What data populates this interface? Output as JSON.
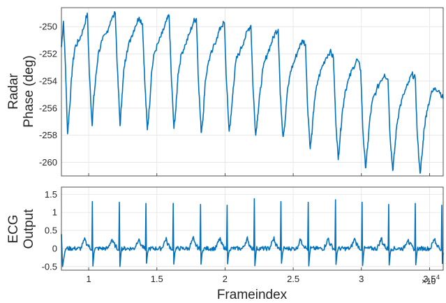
{
  "chart_data": [
    {
      "type": "line",
      "panel": "top",
      "ylabel_line1": "Radar",
      "ylabel_line2": "Phase (deg)",
      "xlabel": "",
      "xlim": [
        8000,
        36000
      ],
      "ylim": [
        -261,
        -248.6
      ],
      "yticks": [
        -250,
        -252,
        -254,
        -256,
        -258,
        -260
      ],
      "grid": true,
      "color": "#0072BD",
      "series": [
        {
          "x": [
            8000,
            8150,
            8300,
            8450,
            8600,
            8800,
            9000,
            9300,
            9600,
            9900,
            10050,
            10250,
            10350,
            10500,
            10700,
            11000,
            11300,
            11600,
            11950,
            12100,
            12300,
            12450,
            12600,
            12800,
            13100,
            13400,
            13700,
            13950,
            14100,
            14300,
            14450,
            14600,
            14800,
            15100,
            15400,
            15700,
            15900,
            16050,
            16250,
            16400,
            16550,
            16800,
            17100,
            17400,
            17700,
            17900,
            18050,
            18250,
            18400,
            18550,
            18800,
            19100,
            19400,
            19700,
            19950,
            20100,
            20300,
            20450,
            20600,
            20800,
            21100,
            21400,
            21700,
            21900,
            22050,
            22250,
            22400,
            22550,
            22800,
            23100,
            23400,
            23700,
            23900,
            24050,
            24250,
            24400,
            24550,
            24800,
            25100,
            25400,
            25700,
            25900,
            26050,
            26250,
            26400,
            26550,
            26800,
            27100,
            27400,
            27700,
            27950,
            28100,
            28300,
            28450,
            28600,
            28800,
            29100,
            29400,
            29700,
            29950,
            30100,
            30300,
            30450,
            30600,
            30800,
            31100,
            31400,
            31700,
            31950,
            32100,
            32300,
            32450,
            32600,
            32800,
            33100,
            33400,
            33700,
            33950,
            34100,
            34300,
            34450,
            34600,
            34800,
            35100,
            35400,
            35700,
            36000
          ],
          "y": [
            -251.5,
            -249.6,
            -253.0,
            -257.9,
            -256.0,
            -253.0,
            -251.5,
            -251.0,
            -250.2,
            -249.0,
            -253.5,
            -257.3,
            -255.5,
            -254.0,
            -252.0,
            -251.0,
            -250.5,
            -249.6,
            -249.0,
            -253.0,
            -257.3,
            -255.0,
            -253.0,
            -251.8,
            -250.8,
            -250.0,
            -249.3,
            -249.8,
            -253.8,
            -257.6,
            -256.0,
            -253.5,
            -252.0,
            -251.2,
            -250.5,
            -249.6,
            -249.2,
            -253.5,
            -257.5,
            -256.0,
            -253.5,
            -252.0,
            -251.3,
            -250.5,
            -249.6,
            -249.4,
            -254.0,
            -257.8,
            -256.5,
            -254.0,
            -252.5,
            -251.7,
            -250.8,
            -250.0,
            -249.7,
            -254.0,
            -257.7,
            -256.5,
            -254.5,
            -252.5,
            -251.8,
            -251.0,
            -250.2,
            -249.9,
            -254.5,
            -258.0,
            -256.5,
            -255.0,
            -253.0,
            -252.0,
            -251.2,
            -250.4,
            -250.2,
            -255.0,
            -258.1,
            -257.0,
            -255.0,
            -253.3,
            -252.5,
            -251.6,
            -251.0,
            -251.3,
            -255.8,
            -259.0,
            -257.5,
            -255.5,
            -254.0,
            -253.0,
            -252.3,
            -251.8,
            -252.3,
            -256.5,
            -259.8,
            -258.0,
            -256.3,
            -254.8,
            -253.8,
            -253.0,
            -252.4,
            -253.2,
            -257.5,
            -260.4,
            -259.0,
            -257.0,
            -255.5,
            -254.7,
            -254.0,
            -253.5,
            -253.9,
            -258.0,
            -260.6,
            -259.0,
            -257.2,
            -256.0,
            -255.0,
            -254.3,
            -253.5,
            -253.8,
            -258.0,
            -260.8,
            -259.5,
            -257.5,
            -256.2,
            -255.0,
            -254.5,
            -254.7,
            -255.3
          ]
        }
      ]
    },
    {
      "type": "line",
      "panel": "bottom",
      "ylabel_line1": "ECG",
      "ylabel_line2": "Output",
      "xlabel": "Frameindex",
      "xlim": [
        8000,
        36000
      ],
      "ylim": [
        -0.6,
        1.7
      ],
      "yticks": [
        1.5,
        1,
        0.5,
        0,
        -0.5
      ],
      "xticks": [
        10000,
        15000,
        20000,
        25000,
        30000,
        35000
      ],
      "xtick_labels": [
        "1",
        "1.5",
        "2",
        "2.5",
        "3",
        "3.5"
      ],
      "x_multiplier": "×10",
      "x_multiplier_exp": "4",
      "grid": true,
      "color": "#0072BD",
      "r_peaks_x": [
        10270,
        12250,
        14200,
        16200,
        18200,
        20150,
        22150,
        24100,
        26100,
        28100,
        30050,
        32000,
        33950,
        35900
      ],
      "r_peaks_y": [
        1.3,
        1.28,
        1.25,
        1.25,
        1.22,
        1.2,
        1.38,
        1.3,
        1.28,
        1.35,
        1.28,
        1.22,
        1.25,
        1.2
      ],
      "baseline": 0.0,
      "s_wave_min": -0.45,
      "t_wave": 0.3
    }
  ]
}
